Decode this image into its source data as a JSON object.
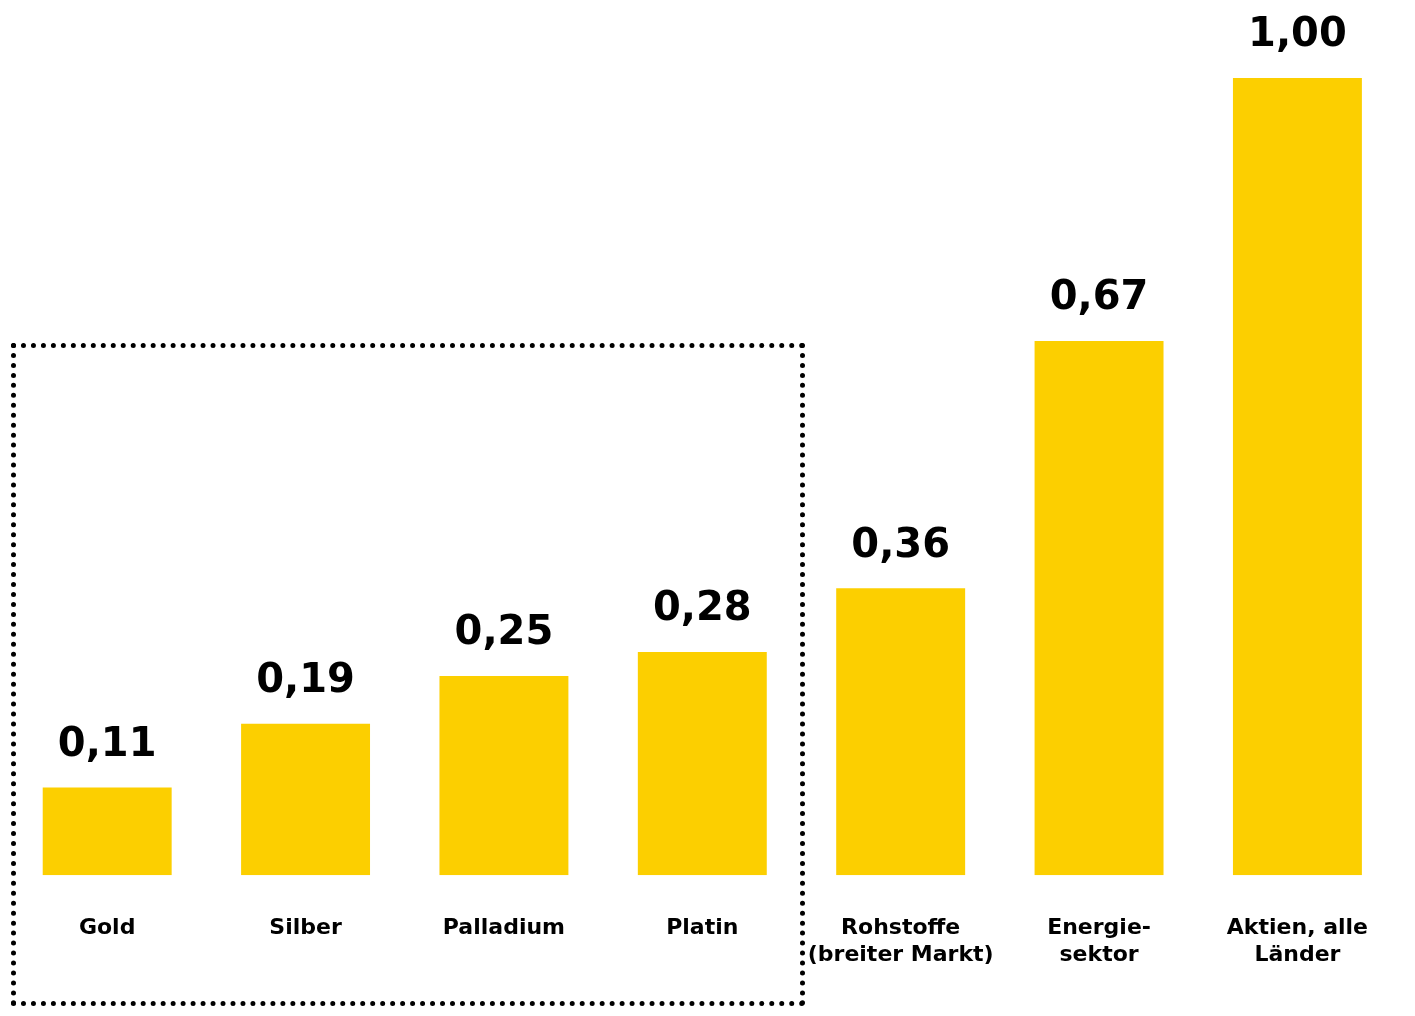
{
  "chart_data": {
    "type": "bar",
    "categories": [
      "Gold",
      "Silber",
      "Palladium",
      "Platin",
      "Rohstoffe\n(breiter Markt)",
      "Energie-\nsektor",
      "Aktien, alle\nLänder"
    ],
    "values": [
      0.11,
      0.19,
      0.25,
      0.28,
      0.36,
      0.67,
      1.0
    ],
    "value_labels": [
      "0,11",
      "0,19",
      "0,25",
      "0,28",
      "0,36",
      "0,67",
      "1,00"
    ],
    "color": "#fccf00",
    "grid": false,
    "legend": false
  }
}
